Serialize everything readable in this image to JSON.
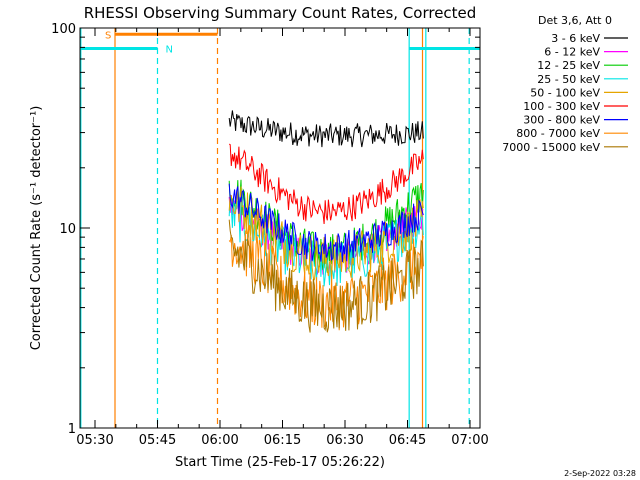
{
  "chart_data": {
    "type": "line",
    "title": "RHESSI Observing Summary Count Rates, Corrected",
    "xlabel": "Start Time (25-Feb-17 05:26:22)",
    "ylabel": "Corrected Count Rate (s⁻¹ detector⁻¹)",
    "yscale": "log",
    "ylim": [
      1,
      100
    ],
    "xlim_minutes": [
      0,
      96
    ],
    "x_unit": "minutes since 05:26:22",
    "xticks": [
      {
        "label": "05:30",
        "value": 3.6
      },
      {
        "label": "05:45",
        "value": 18.6
      },
      {
        "label": "06:00",
        "value": 33.6
      },
      {
        "label": "06:15",
        "value": 48.6
      },
      {
        "label": "06:30",
        "value": 63.6
      },
      {
        "label": "06:45",
        "value": 78.6
      },
      {
        "label": "07:00",
        "value": 93.6
      }
    ],
    "yticks": [
      {
        "label": "1",
        "value": 1
      },
      {
        "label": "10",
        "value": 10
      },
      {
        "label": "100",
        "value": 100
      }
    ],
    "legend_title": "Det 3,6, Att 0",
    "legend_placement": "top-right outside",
    "data_start_min": 35.8,
    "data_end_min": 82.4,
    "series": [
      {
        "name": "3 - 6 keV",
        "color": "#000000",
        "start": 34,
        "mid": 29,
        "end": 30,
        "noise": 0.06
      },
      {
        "name": "6 - 12 keV",
        "color": "#ff00ff",
        "start": 13,
        "mid": 7,
        "end": 12,
        "noise": 0.09
      },
      {
        "name": "12 - 25 keV",
        "color": "#00cc00",
        "start": 16,
        "mid": 7.5,
        "end": 15,
        "noise": 0.1
      },
      {
        "name": "25 - 50 keV",
        "color": "#00e5e5",
        "start": 12,
        "mid": 6.5,
        "end": 11,
        "noise": 0.12
      },
      {
        "name": "50 - 100 keV",
        "color": "#e5a500",
        "start": 14,
        "mid": 7,
        "end": 11,
        "noise": 0.12
      },
      {
        "name": "100 - 300 keV",
        "color": "#ff0000",
        "start": 24,
        "mid": 12,
        "end": 22,
        "noise": 0.07
      },
      {
        "name": "300 - 800 keV",
        "color": "#0000ff",
        "start": 15,
        "mid": 8,
        "end": 12,
        "noise": 0.08
      },
      {
        "name": "800 - 7000 keV",
        "color": "#ff8800",
        "start": 9,
        "mid": 4.2,
        "end": 7,
        "noise": 0.14
      },
      {
        "name": "7000 - 15000 keV",
        "color": "#aa7700",
        "start": 8,
        "mid": 4,
        "end": 6.5,
        "noise": 0.14
      }
    ],
    "flags": [
      {
        "label": "S",
        "color": "#ff8000",
        "start_min": 8.4,
        "end_min": 33.0,
        "y_value": 93
      },
      {
        "label": "N",
        "color": "#00e5e5",
        "segments": [
          [
            0,
            18.6
          ],
          [
            79.0,
            96.0
          ]
        ],
        "y_value": 79
      }
    ],
    "vlines": [
      {
        "x_min": 0.2,
        "color": "#00e5e5",
        "style": "solid"
      },
      {
        "x_min": 8.4,
        "color": "#ff8000",
        "style": "solid"
      },
      {
        "x_min": 18.6,
        "color": "#00e5e5",
        "style": "dashed"
      },
      {
        "x_min": 33.0,
        "color": "#ff8000",
        "style": "dashed"
      },
      {
        "x_min": 79.0,
        "color": "#00e5e5",
        "style": "solid"
      },
      {
        "x_min": 83.0,
        "color": "#00e5e5",
        "style": "solid"
      },
      {
        "x_min": 82.2,
        "color": "#ff8000",
        "style": "solid"
      },
      {
        "x_min": 93.4,
        "color": "#00e5e5",
        "style": "dashed"
      }
    ]
  },
  "footer_date": "2-Sep-2022 03:28"
}
